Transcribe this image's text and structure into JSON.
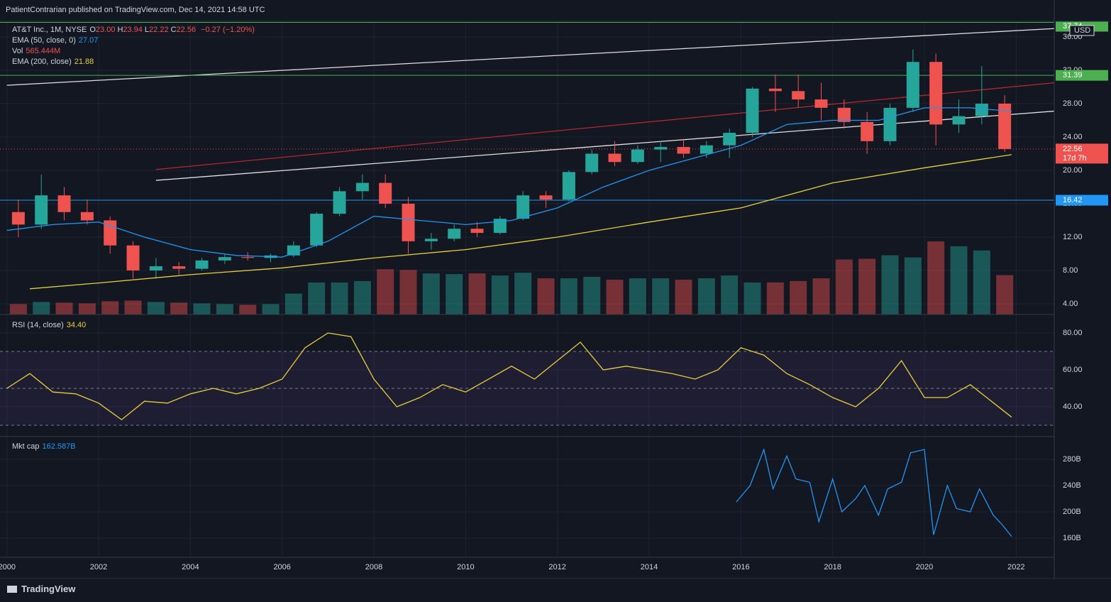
{
  "header": {
    "text": "PatientContrarian published on TradingView.com, Dec 14, 2021 14:58 UTC"
  },
  "footer": {
    "brand": "TradingView"
  },
  "chart_data": [
    {
      "type": "candlestick",
      "title": "AT&T Inc., 1M, NYSE",
      "currency": "USD",
      "ohlc": [
        {
          "label": "O",
          "value": "23.00"
        },
        {
          "label": "H",
          "value": "23.94"
        },
        {
          "label": "L",
          "value": "22.22"
        },
        {
          "label": "C",
          "value": "22.56"
        }
      ],
      "change": "−0.27 (−1.20%)",
      "up_color": "#26a69a",
      "down_color": "#ef5350",
      "x": [
        2000,
        2000.5,
        2001,
        2001.5,
        2002,
        2002.5,
        2003,
        2003.5,
        2004,
        2004.5,
        2005,
        2005.5,
        2006,
        2006.5,
        2007,
        2007.5,
        2008,
        2008.5,
        2009,
        2009.5,
        2010,
        2010.5,
        2011,
        2011.5,
        2012,
        2012.5,
        2013,
        2013.5,
        2014,
        2014.5,
        2015,
        2015.5,
        2016,
        2016.5,
        2017,
        2017.5,
        2018,
        2018.5,
        2019,
        2019.5,
        2020,
        2020.5,
        2021,
        2021.5
      ],
      "open": [
        15,
        13.5,
        17,
        15,
        14,
        11,
        8,
        8.5,
        8.2,
        9.2,
        9.6,
        9.5,
        9.8,
        11,
        14.8,
        17.5,
        18.5,
        16,
        11.5,
        11.8,
        13,
        12.5,
        14.2,
        17,
        16.5,
        19.8,
        22,
        21,
        22.5,
        22.8,
        22,
        23,
        24.5,
        29.8,
        29.5,
        28.5,
        27.5,
        25.8,
        23.5,
        27.5,
        33,
        25.5,
        26.5,
        28
      ],
      "high": [
        16.5,
        19.5,
        18,
        16.5,
        14.5,
        11.5,
        9.5,
        9,
        9.5,
        10,
        10.2,
        10,
        11.5,
        15,
        18,
        19.5,
        19.5,
        16.8,
        12.5,
        13.5,
        13.8,
        14.5,
        17.5,
        17.5,
        20,
        22.5,
        23.5,
        23,
        23.5,
        23.8,
        23.5,
        25,
        30,
        31.5,
        31.5,
        30.5,
        28.5,
        27,
        28,
        34.5,
        34,
        28.5,
        32.5,
        29
      ],
      "low": [
        12,
        13,
        14,
        13.5,
        10,
        7,
        7,
        7.5,
        8,
        8.8,
        9.2,
        9,
        9.6,
        10.8,
        14.5,
        16.5,
        15.5,
        10,
        10.5,
        11.5,
        12,
        12.3,
        14,
        15.5,
        16.3,
        19.5,
        20.5,
        20.8,
        21,
        21.5,
        21.5,
        21.5,
        24,
        27,
        27.5,
        26,
        25,
        22,
        23,
        27,
        23,
        24.5,
        25.5,
        22.2
      ],
      "close": [
        13.5,
        17,
        15,
        14,
        11,
        8,
        8.5,
        8.2,
        9.2,
        9.6,
        9.5,
        9.8,
        11,
        14.8,
        17.5,
        18.5,
        16,
        11.5,
        11.8,
        13,
        12.5,
        14.2,
        17,
        16.5,
        19.8,
        22,
        21,
        22.5,
        22.8,
        22,
        23,
        24.5,
        29.8,
        29.5,
        28.5,
        27.5,
        25.8,
        23.5,
        27.5,
        33,
        25.5,
        26.5,
        28,
        22.56
      ],
      "volume_name": "Vol",
      "volume_label": "565.444M",
      "volume": [
        150,
        180,
        170,
        160,
        190,
        200,
        180,
        170,
        160,
        150,
        140,
        150,
        300,
        460,
        460,
        480,
        650,
        640,
        590,
        580,
        590,
        560,
        600,
        520,
        520,
        540,
        500,
        520,
        520,
        500,
        520,
        560,
        460,
        460,
        480,
        520,
        790,
        800,
        850,
        820,
        1050,
        980,
        920,
        565.444
      ],
      "series": [
        {
          "name": "EMA (50, close, 0)",
          "last": "27.07",
          "color": "#2196f3",
          "x": [
            2000,
            2001,
            2002,
            2003,
            2004,
            2005,
            2006,
            2007,
            2008,
            2009,
            2010,
            2011,
            2012,
            2013,
            2014,
            2015,
            2016,
            2017,
            2018,
            2019,
            2020,
            2021,
            2021.9
          ],
          "values": [
            12.8,
            13.5,
            13.8,
            12,
            10.5,
            9.8,
            9.6,
            11.5,
            14.5,
            14,
            13.5,
            14,
            15.5,
            18,
            20,
            21.5,
            23,
            25.5,
            26,
            26,
            27.5,
            27.5,
            27.07
          ]
        },
        {
          "name": "EMA (200, close)",
          "last": "21.88",
          "color": "#e6cf3e",
          "x": [
            2000.5,
            2002,
            2004,
            2006,
            2008,
            2010,
            2012,
            2014,
            2016,
            2018,
            2020,
            2021.9
          ],
          "values": [
            5.8,
            6.5,
            7.5,
            8.3,
            9.5,
            10.5,
            12,
            13.8,
            15.5,
            18.5,
            20.3,
            21.88
          ]
        }
      ],
      "levels": [
        {
          "value": 37.74,
          "color": "#4caf50"
        },
        {
          "value": 31.39,
          "color": "#4caf50"
        },
        {
          "value": 22.56,
          "color": "#ef5350",
          "note": "17d 7h"
        },
        {
          "value": 16.42,
          "color": "#2196f3"
        }
      ],
      "drawings": [
        {
          "color": "#e0e0e0",
          "x": [
            2000,
            2022.83
          ],
          "values": [
            30.2,
            37
          ]
        },
        {
          "color": "#b2282e",
          "x": [
            2003.25,
            2022.83
          ],
          "values": [
            20.1,
            30.5
          ]
        },
        {
          "color": "#e0e0e0",
          "x": [
            2003.25,
            2022.83
          ],
          "values": [
            18.8,
            27.1
          ]
        }
      ],
      "xlim": [
        1999.85,
        2022.83
      ],
      "xticks": [
        2000,
        2002,
        2004,
        2006,
        2008,
        2010,
        2012,
        2014,
        2016,
        2018,
        2020,
        2022
      ],
      "ylim": [
        2.72,
        37.87
      ],
      "yticks": [
        {
          "value": 4,
          "label": "4.00"
        },
        {
          "value": 8,
          "label": "8.00"
        },
        {
          "value": 12,
          "label": "12.00"
        },
        {
          "value": 16,
          "label": "16.00"
        },
        {
          "value": 20,
          "label": "20.00"
        },
        {
          "value": 24,
          "label": "24.00"
        },
        {
          "value": 28,
          "label": "28.00"
        },
        {
          "value": 32,
          "label": "32.00"
        },
        {
          "value": 36,
          "label": "36.00"
        }
      ]
    },
    {
      "type": "line",
      "title": "RSI (14, close)",
      "last": "34.40",
      "color": "#e6cf3e",
      "x": [
        2000,
        2000.5,
        2001,
        2001.5,
        2002,
        2002.5,
        2003,
        2003.5,
        2004,
        2004.5,
        2005,
        2005.5,
        2006,
        2006.5,
        2007,
        2007.5,
        2008,
        2008.5,
        2009,
        2009.5,
        2010,
        2010.5,
        2011,
        2011.5,
        2012,
        2012.5,
        2013,
        2013.5,
        2014,
        2014.5,
        2015,
        2015.5,
        2016,
        2016.5,
        2017,
        2017.5,
        2018,
        2018.5,
        2019,
        2019.5,
        2020,
        2020.5,
        2021,
        2021.9
      ],
      "values": [
        50,
        58,
        48,
        47,
        42,
        33,
        43,
        42,
        47,
        50,
        47,
        50,
        55,
        72,
        80,
        78,
        55,
        40,
        45,
        52,
        48,
        55,
        62,
        55,
        65,
        75,
        60,
        62,
        60,
        58,
        55,
        60,
        72,
        68,
        58,
        52,
        45,
        40,
        50,
        65,
        45,
        45,
        52,
        34.4
      ],
      "band": [
        30,
        70
      ],
      "levels": [
        70,
        50,
        30
      ],
      "ylim": [
        23.85,
        90
      ],
      "yticks": [
        {
          "value": 40,
          "label": "40.00"
        },
        {
          "value": 60,
          "label": "60.00"
        },
        {
          "value": 80,
          "label": "80.00"
        }
      ]
    },
    {
      "type": "line",
      "title": "Mkt cap",
      "last": "162.587B",
      "color": "#2196f3",
      "x": [
        2015.9,
        2016.2,
        2016.5,
        2016.7,
        2017,
        2017.2,
        2017.5,
        2017.7,
        2018,
        2018.2,
        2018.5,
        2018.7,
        2019,
        2019.2,
        2019.5,
        2019.7,
        2020,
        2020.2,
        2020.5,
        2020.7,
        2021,
        2021.2,
        2021.5,
        2021.7,
        2021.9
      ],
      "values": [
        215,
        240,
        295,
        235,
        285,
        250,
        245,
        185,
        250,
        200,
        220,
        240,
        195,
        235,
        245,
        290,
        295,
        165,
        240,
        205,
        200,
        235,
        195,
        180,
        162.587
      ],
      "ylim": [
        130.8,
        314.6
      ],
      "yticks": [
        {
          "value": 160,
          "label": "160B"
        },
        {
          "value": 200,
          "label": "200B"
        },
        {
          "value": 240,
          "label": "240B"
        },
        {
          "value": 280,
          "label": "280B"
        }
      ]
    }
  ]
}
